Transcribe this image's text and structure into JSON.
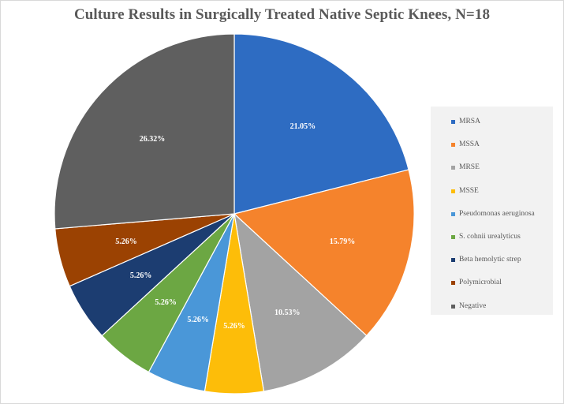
{
  "chart_data": {
    "type": "pie",
    "title": "Culture Results in Surgically Treated Native Septic Knees, N=18",
    "legend_position": "right",
    "start_angle_deg": 0,
    "direction": "clockwise",
    "slices": [
      {
        "label": "MRSA",
        "value": 21.05,
        "value_label": "21.05%",
        "color": "#2e6cc2"
      },
      {
        "label": "MSSA",
        "value": 15.79,
        "value_label": "15.79%",
        "color": "#f5832c"
      },
      {
        "label": "MRSE",
        "value": 10.53,
        "value_label": "10.53%",
        "color": "#a3a3a3"
      },
      {
        "label": "MSSE",
        "value": 5.26,
        "value_label": "5.26%",
        "color": "#fdbd09"
      },
      {
        "label": "Pseudomonas aeruginosa",
        "value": 5.26,
        "value_label": "5.26%",
        "color": "#4a97d8"
      },
      {
        "label": "S. cohnii urealyticus",
        "value": 5.26,
        "value_label": "5.26%",
        "color": "#6ca743"
      },
      {
        "label": "Beta hemolytic strep",
        "value": 5.26,
        "value_label": "5.26%",
        "color": "#1c3d71"
      },
      {
        "label": "Polymicrobial",
        "value": 5.26,
        "value_label": "5.26%",
        "color": "#9b4202"
      },
      {
        "label": "Negative",
        "value": 26.32,
        "value_label": "26.32%",
        "color": "#5f5f5f"
      }
    ]
  }
}
